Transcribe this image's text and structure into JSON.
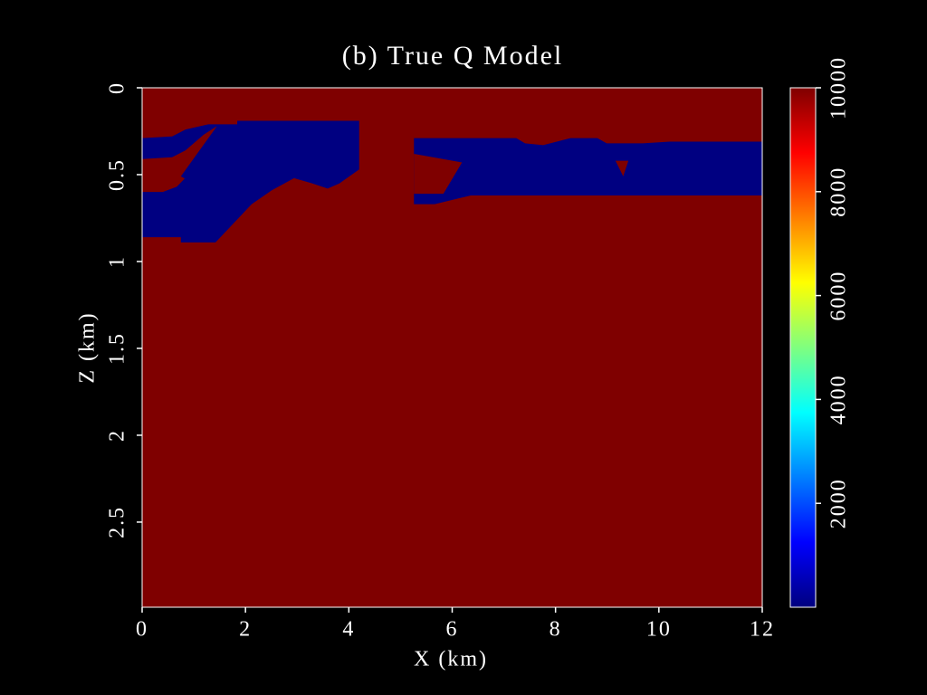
{
  "chart_data": {
    "type": "heatmap",
    "title": "(b) True Q Model",
    "x_label": "X (km)",
    "y_label": "Z (km)",
    "xlim": [
      0,
      12
    ],
    "xticks": [
      0,
      2,
      4,
      6,
      8,
      10,
      12
    ],
    "ylim": [
      0,
      2.99
    ],
    "yticks": [
      0,
      0.5,
      1,
      1.5,
      2,
      2.5
    ],
    "y_inverted": true,
    "clim": [
      0,
      10000
    ],
    "cticks": [
      2000,
      4000,
      6000,
      8000,
      10000
    ],
    "colormap": [
      "#00007f",
      "#0000ff",
      "#007fff",
      "#00ffff",
      "#7fff7f",
      "#ffff00",
      "#ff7f00",
      "#ff0000",
      "#7f0000"
    ],
    "background_value": 10000,
    "regions": [
      {
        "value": 20,
        "x": [
          0,
          0.58,
          0.84,
          1.28,
          1.84,
          1.84,
          4.2,
          4.2,
          3.82,
          3.59,
          3.29,
          2.94,
          2.51,
          2.12,
          1.77,
          1.42,
          0.75,
          0.75,
          0
        ],
        "z": [
          0.29,
          0.28,
          0.24,
          0.21,
          0.21,
          0.19,
          0.19,
          0.47,
          0.55,
          0.58,
          0.55,
          0.52,
          0.59,
          0.67,
          0.78,
          0.89,
          0.89,
          0.86,
          0.86
        ]
      },
      {
        "value": 10000,
        "x": [
          0,
          0.58,
          0.84,
          1.19,
          1.45,
          1.19,
          0.93,
          0.67,
          0.4,
          0
        ],
        "z": [
          0.41,
          0.4,
          0.36,
          0.27,
          0.22,
          0.36,
          0.49,
          0.57,
          0.6,
          0.6
        ]
      },
      {
        "value": 20,
        "x": [
          0.75,
          1.45,
          1.63,
          0.93
        ],
        "z": [
          0.51,
          0.22,
          0.22,
          0.54
        ]
      },
      {
        "value": 20,
        "x": [
          5.26,
          7.24,
          7.41,
          7.76,
          8.29,
          8.81,
          8.99,
          9.69,
          10.21,
          12,
          12,
          6.36,
          5.66,
          5.26
        ],
        "z": [
          0.29,
          0.29,
          0.32,
          0.33,
          0.29,
          0.29,
          0.32,
          0.32,
          0.31,
          0.31,
          0.62,
          0.62,
          0.67,
          0.67
        ]
      },
      {
        "value": 10000,
        "x": [
          5.26,
          6.19,
          5.83,
          5.26
        ],
        "z": [
          0.38,
          0.43,
          0.61,
          0.61
        ]
      },
      {
        "value": 10000,
        "x": [
          9.16,
          9.41,
          9.31
        ],
        "z": [
          0.42,
          0.42,
          0.51
        ]
      }
    ]
  }
}
